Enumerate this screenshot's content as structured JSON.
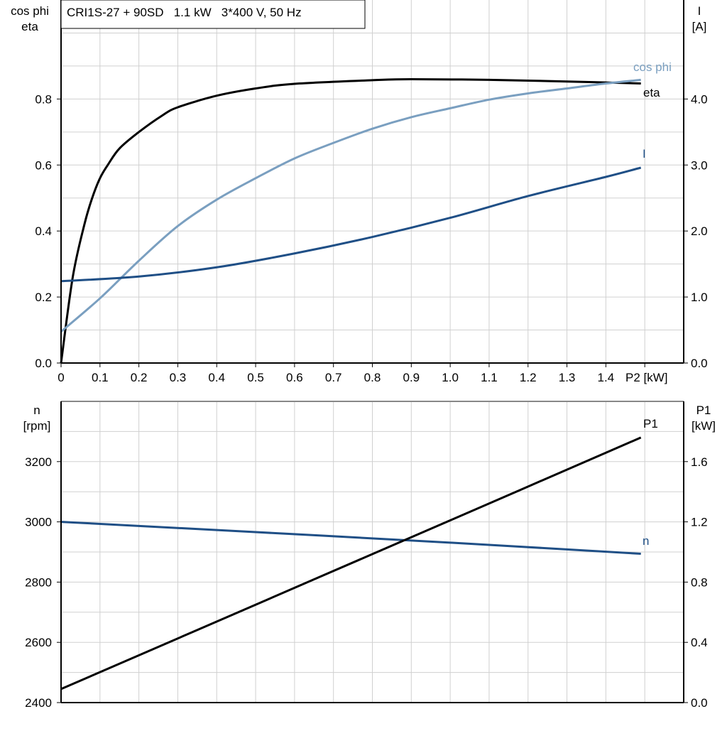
{
  "chart_data": [
    {
      "type": "line",
      "title": "CRI1S-27 + 90SD   1.1 kW   3*400 V, 50 Hz",
      "xlabel": "P2 [kW]",
      "ylabel_left": [
        "cos phi",
        "eta"
      ],
      "ylabel_right": [
        "I",
        "[A]"
      ],
      "xlim": [
        0,
        1.6
      ],
      "ylim_left": [
        0,
        1.1
      ],
      "ylim_right": [
        0,
        5.5
      ],
      "x_ticks": [
        "0",
        "0.1",
        "0.2",
        "0.3",
        "0.4",
        "0.5",
        "0.6",
        "0.7",
        "0.8",
        "0.9",
        "1.0",
        "1.1",
        "1.2",
        "1.3",
        "1.4"
      ],
      "y_ticks_left": [
        "0.0",
        "0.2",
        "0.4",
        "0.6",
        "0.8"
      ],
      "y_ticks_right": [
        "0.0",
        "1.0",
        "2.0",
        "3.0",
        "4.0"
      ],
      "grid": true,
      "series": [
        {
          "name": "eta",
          "axis": "left",
          "color": "#000000",
          "x": [
            0,
            0.03,
            0.06,
            0.08,
            0.1,
            0.12,
            0.15,
            0.2,
            0.26,
            0.3,
            0.4,
            0.5,
            0.6,
            0.8,
            0.9,
            1.1,
            1.3,
            1.49
          ],
          "y": [
            0,
            0.26,
            0.42,
            0.5,
            0.56,
            0.6,
            0.65,
            0.7,
            0.75,
            0.775,
            0.81,
            0.832,
            0.846,
            0.857,
            0.86,
            0.858,
            0.853,
            0.847
          ]
        },
        {
          "name": "cos phi",
          "axis": "left",
          "color": "#7a9fc0",
          "x": [
            0,
            0.1,
            0.2,
            0.3,
            0.4,
            0.5,
            0.6,
            0.7,
            0.8,
            0.9,
            1.0,
            1.1,
            1.2,
            1.3,
            1.4,
            1.49
          ],
          "y": [
            0.095,
            0.196,
            0.31,
            0.415,
            0.495,
            0.56,
            0.62,
            0.667,
            0.71,
            0.745,
            0.772,
            0.798,
            0.817,
            0.832,
            0.847,
            0.858
          ]
        },
        {
          "name": "I",
          "axis": "right",
          "color": "#1f4f86",
          "x": [
            0,
            0.2,
            0.4,
            0.6,
            0.8,
            1.0,
            1.2,
            1.4,
            1.49
          ],
          "y": [
            1.24,
            1.31,
            1.45,
            1.66,
            1.91,
            2.2,
            2.53,
            2.82,
            2.96
          ]
        }
      ]
    },
    {
      "type": "line",
      "xlim": [
        0,
        1.6
      ],
      "ylabel_left": [
        "n",
        "[rpm]"
      ],
      "ylabel_right": [
        "P1",
        "[kW]"
      ],
      "ylim_left": [
        2400,
        3400
      ],
      "ylim_right": [
        0,
        2.0
      ],
      "y_ticks_left": [
        "2400",
        "2600",
        "2800",
        "3000",
        "3200"
      ],
      "y_ticks_right": [
        "0.0",
        "0.4",
        "0.8",
        "1.2",
        "1.6"
      ],
      "grid": true,
      "series": [
        {
          "name": "n",
          "axis": "left",
          "color": "#1f4f86",
          "x": [
            0,
            0.5,
            1.0,
            1.49
          ],
          "y": [
            3000,
            2966,
            2931,
            2894
          ]
        },
        {
          "name": "P1",
          "axis": "right",
          "color": "#000000",
          "x": [
            0,
            0.5,
            1.0,
            1.49
          ],
          "y": [
            0.09,
            0.65,
            1.21,
            1.76
          ]
        }
      ]
    }
  ]
}
